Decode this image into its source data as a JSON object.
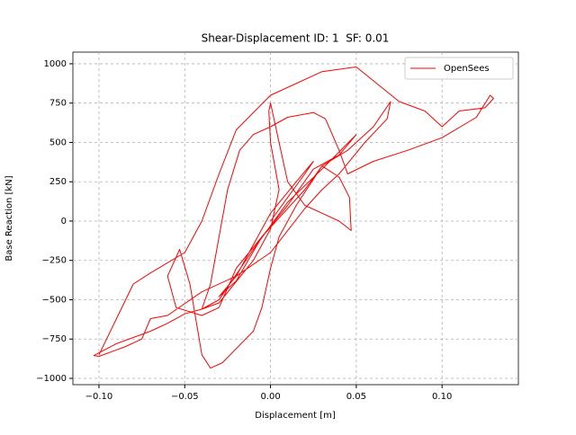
{
  "chart_data": {
    "type": "line",
    "title": "Shear-Displacement ID: 1  SF: 0.01",
    "x_label": "Displacement [m]",
    "y_label": "Base Reaction [kN]",
    "x": [
      0,
      0.01,
      0.02,
      0.025,
      0.015,
      0,
      -0.01,
      -0.02,
      -0.03,
      -0.02,
      -0.005,
      0.01,
      0.025,
      0.04,
      0.05,
      0.03,
      0.01,
      -0.01,
      -0.03,
      -0.04,
      -0.03,
      -0.01,
      0,
      0.005,
      0,
      -0.001,
      0,
      0.005,
      0.01,
      0.02,
      0.03,
      0.04,
      0.047,
      0.046,
      0.04,
      0.03,
      0.02,
      -0.005,
      -0.02,
      -0.03,
      -0.04,
      -0.055,
      -0.06,
      -0.053,
      -0.047,
      -0.04,
      -0.035,
      -0.028,
      -0.01,
      -0.005,
      0,
      0.005,
      0.015,
      0.03,
      0.045,
      0.06,
      0.07,
      0.068,
      0.055,
      0.04,
      0.03,
      0.02,
      0,
      -0.02,
      -0.04,
      -0.06,
      -0.07,
      -0.075,
      -0.085,
      -0.1,
      -0.103,
      -0.09,
      -0.07,
      -0.06,
      -0.05,
      -0.04,
      -0.035,
      -0.03,
      -0.025,
      -0.018,
      -0.01,
      0,
      0.01,
      0.025,
      0.032,
      0.04,
      0.045,
      0.06,
      0.08,
      0.1,
      0.12,
      0.128,
      0.13,
      0.125,
      0.11,
      0.1,
      0.09,
      0.075,
      0.05,
      0.03,
      0,
      -0.02,
      -0.03,
      -0.04,
      -0.05,
      -0.07,
      -0.08,
      -0.1
    ],
    "series": [
      {
        "name": "OpenSees",
        "color": "#ff0000",
        "values": [
          0,
          150,
          300,
          380,
          250,
          50,
          -150,
          -350,
          -480,
          -380,
          -100,
          100,
          330,
          420,
          550,
          330,
          120,
          -180,
          -500,
          -560,
          -520,
          -250,
          -50,
          200,
          500,
          700,
          750,
          500,
          250,
          100,
          50,
          0,
          -60,
          150,
          280,
          350,
          200,
          -100,
          -300,
          -550,
          -600,
          -550,
          -350,
          -180,
          -400,
          -850,
          -935,
          -900,
          -700,
          -550,
          -300,
          -100,
          100,
          350,
          450,
          600,
          760,
          650,
          500,
          300,
          200,
          80,
          -200,
          -350,
          -450,
          -600,
          -620,
          -750,
          -800,
          -860,
          -855,
          -780,
          -700,
          -650,
          -590,
          -560,
          -400,
          -100,
          200,
          450,
          550,
          600,
          660,
          690,
          650,
          450,
          300,
          380,
          450,
          530,
          660,
          800,
          780,
          720,
          700,
          600,
          700,
          760,
          980,
          950,
          800,
          580,
          300,
          0,
          -200,
          -330,
          -400,
          -850
        ]
      }
    ],
    "xlim": [
      -0.1152,
      0.1445
    ],
    "ylim": [
      -1040,
      1074
    ],
    "xticks": [
      {
        "value": -0.1,
        "label": "−0.10"
      },
      {
        "value": -0.05,
        "label": "−0.05"
      },
      {
        "value": 0,
        "label": "0.00"
      },
      {
        "value": 0.05,
        "label": "0.05"
      },
      {
        "value": 0.1,
        "label": "0.10"
      }
    ],
    "yticks": [
      {
        "value": -1000,
        "label": "−1000"
      },
      {
        "value": -750,
        "label": "−750"
      },
      {
        "value": -500,
        "label": "−500"
      },
      {
        "value": -250,
        "label": "−250"
      },
      0,
      250,
      500,
      750,
      1000
    ],
    "grid": true,
    "legend": "upper right"
  }
}
